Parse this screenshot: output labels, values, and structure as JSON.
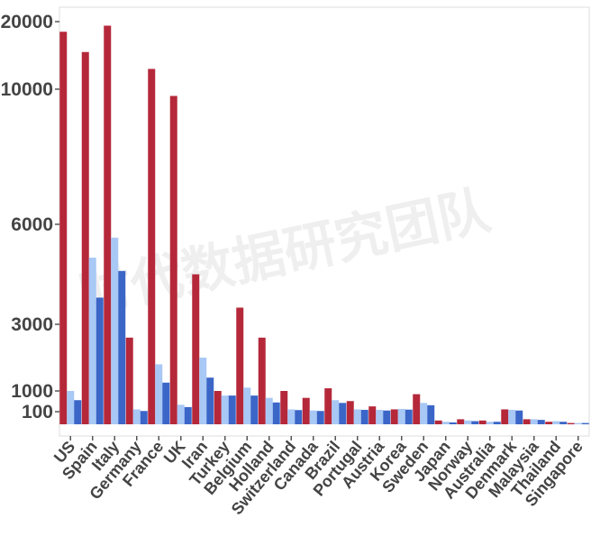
{
  "watermark": "时代数据研究团队",
  "chart_data": {
    "type": "bar",
    "title": "",
    "xlabel": "",
    "ylabel": "",
    "y_scale": "custom-compressed (tick spacing unequal)",
    "yticks": [
      100,
      1000,
      3000,
      6000,
      10000,
      20000
    ],
    "grid": true,
    "legend": "none",
    "categories": [
      "US",
      "Spain",
      "Italy",
      "Germany",
      "France",
      "UK",
      "Iran",
      "Turkey",
      "Belgium",
      "Holland",
      "Switzerland",
      "Canada",
      "Brazil",
      "Portugal",
      "Austria",
      "Korea",
      "Sweden",
      "Japan",
      "Norway",
      "Australia",
      "Denmark",
      "Malaysia",
      "Thailand",
      "Singapore"
    ],
    "series": [
      {
        "color": "#b5283a",
        "values": [
          18500,
          15500,
          19400,
          2600,
          13000,
          9800,
          4500,
          1000,
          3500,
          2600,
          1000,
          700,
          1080,
          560,
          330,
          200,
          860,
          30,
          40,
          30,
          200,
          40,
          20,
          10
        ]
      },
      {
        "color": "#a8c8f5",
        "values": [
          1000,
          5000,
          5600,
          200,
          1800,
          400,
          2000,
          800,
          1100,
          700,
          200,
          150,
          600,
          200,
          180,
          220,
          480,
          20,
          30,
          20,
          180,
          40,
          25,
          10
        ]
      },
      {
        "color": "#3b66c8",
        "values": [
          600,
          3800,
          4600,
          130,
          1250,
          300,
          1400,
          800,
          800,
          500,
          170,
          130,
          480,
          180,
          150,
          190,
          380,
          15,
          25,
          20,
          150,
          35,
          20,
          10
        ]
      }
    ]
  }
}
